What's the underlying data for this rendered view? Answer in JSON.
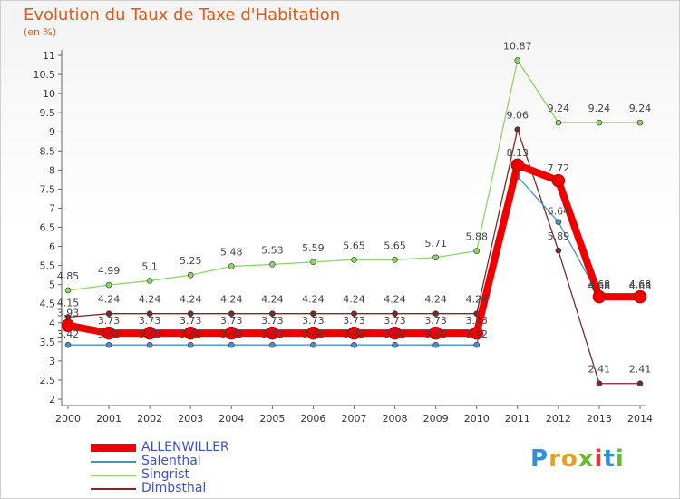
{
  "title": "Evolution du Taux de Taxe d'Habitation",
  "subtitle": "(en %)",
  "brand": "Proxiti",
  "chart_data": {
    "type": "line",
    "title": "Evolution du Taux de Taxe d'Habitation",
    "ylabel": "(en %)",
    "xlabel": "",
    "x": [
      2000,
      2001,
      2002,
      2003,
      2004,
      2005,
      2006,
      2007,
      2008,
      2009,
      2010,
      2011,
      2012,
      2013,
      2014
    ],
    "ylim": [
      2,
      11
    ],
    "yticks": [
      2,
      2.5,
      3,
      3.5,
      4,
      4.5,
      5,
      5.5,
      6,
      6.5,
      7,
      7.5,
      8,
      8.5,
      9,
      9.5,
      10,
      10.5,
      11
    ],
    "grid": false,
    "legend_position": "bottom-left",
    "series": [
      {
        "name": "ALLENWILLER",
        "color": "#ee0000",
        "values": [
          3.93,
          3.73,
          3.73,
          3.73,
          3.73,
          3.73,
          3.73,
          3.73,
          3.73,
          3.73,
          3.73,
          8.13,
          7.72,
          4.68,
          4.68
        ],
        "labels": [
          "3.93",
          "3.73",
          "3.73",
          "3.73",
          "3.73",
          "3.73",
          "3.73",
          "3.73",
          "3.73",
          "3.73",
          "3.73",
          "8.13",
          "7.72",
          "4.68",
          "4.68"
        ]
      },
      {
        "name": "Salenthal",
        "color": "#4a90c8",
        "values": [
          3.42,
          3.42,
          3.42,
          3.42,
          3.42,
          3.42,
          3.42,
          3.42,
          3.42,
          3.42,
          3.42,
          7.83,
          6.64,
          4.68,
          4.68
        ],
        "labels": [
          "3.42",
          "3.42",
          "3.42",
          "3.42",
          "3.42",
          "3.42",
          "3.42",
          "3.42",
          "3.42",
          "3.42",
          "3.42",
          "",
          "6.64",
          "4.68",
          "4.68"
        ]
      },
      {
        "name": "Singrist",
        "color": "#8fd46a",
        "values": [
          4.85,
          4.99,
          5.1,
          5.25,
          5.48,
          5.53,
          5.59,
          5.65,
          5.65,
          5.71,
          5.88,
          10.87,
          9.24,
          9.24,
          9.24
        ],
        "labels": [
          "4.85",
          "4.99",
          "5.1",
          "5.25",
          "5.48",
          "5.53",
          "5.59",
          "5.65",
          "5.65",
          "5.71",
          "5.88",
          "10.87",
          "9.24",
          "9.24",
          "9.24"
        ]
      },
      {
        "name": "Dimbsthal",
        "color": "#7a2a2a",
        "values": [
          4.15,
          4.24,
          4.24,
          4.24,
          4.24,
          4.24,
          4.24,
          4.24,
          4.24,
          4.24,
          4.24,
          9.06,
          5.89,
          2.41,
          2.41
        ],
        "labels": [
          "4.15",
          "4.24",
          "4.24",
          "4.24",
          "4.24",
          "4.24",
          "4.24",
          "4.24",
          "4.24",
          "4.24",
          "4.24",
          "9.06",
          "5.89",
          "2.41",
          "2.41"
        ]
      }
    ]
  }
}
